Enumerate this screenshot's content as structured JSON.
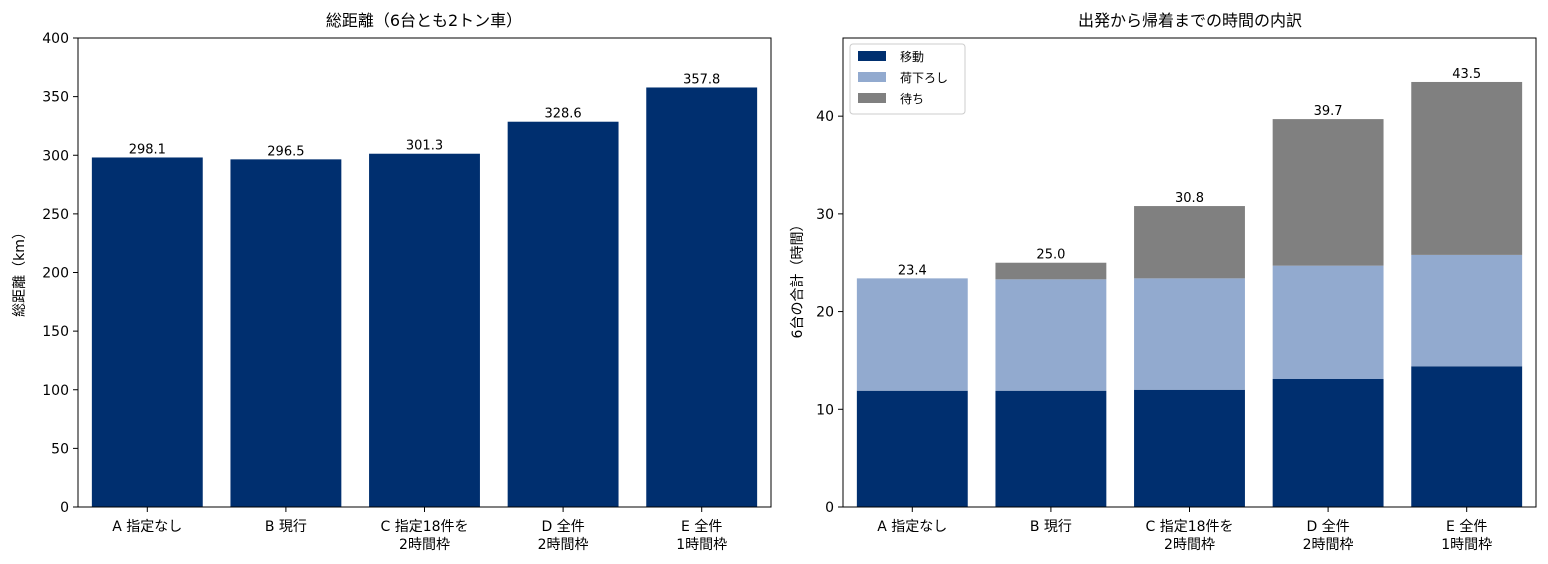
{
  "chart_data": [
    {
      "type": "bar",
      "title": "総距離（6台とも2トン車）",
      "xlabel": "",
      "ylabel": "総距離（km）",
      "ylim": [
        0,
        400
      ],
      "yticks": [
        0,
        50,
        100,
        150,
        200,
        250,
        300,
        350,
        400
      ],
      "categories": [
        [
          "A 指定なし"
        ],
        [
          "B 現行"
        ],
        [
          "C 指定18件を",
          "2時間枠"
        ],
        [
          "D 全件",
          "2時間枠"
        ],
        [
          "E 全件",
          "1時間枠"
        ]
      ],
      "values": [
        298.1,
        296.5,
        301.3,
        328.6,
        357.8
      ],
      "value_labels": [
        "298.1",
        "296.5",
        "301.3",
        "328.6",
        "357.8"
      ],
      "color": "#002f6f",
      "grid": false
    },
    {
      "type": "bar",
      "stacked": true,
      "title": "出発から帰着までの時間の内訳",
      "xlabel": "",
      "ylabel": "6台の合計（時間）",
      "ylim": [
        0,
        48
      ],
      "yticks": [
        0,
        10,
        20,
        30,
        40
      ],
      "categories": [
        [
          "A 指定なし"
        ],
        [
          "B 現行"
        ],
        [
          "C 指定18件を",
          "2時間枠"
        ],
        [
          "D 全件",
          "2時間枠"
        ],
        [
          "E 全件",
          "1時間枠"
        ]
      ],
      "series": [
        {
          "name": "移動",
          "color": "#002f6f",
          "values": [
            11.9,
            11.9,
            12.0,
            13.1,
            14.4
          ]
        },
        {
          "name": "荷下ろし",
          "color": "#92aacf",
          "values": [
            11.5,
            11.4,
            11.4,
            11.6,
            11.4
          ]
        },
        {
          "name": "待ち",
          "color": "#808080",
          "values": [
            0.0,
            1.7,
            7.4,
            15.0,
            17.7
          ]
        }
      ],
      "totals": [
        23.4,
        25.0,
        30.8,
        39.7,
        43.5
      ],
      "total_labels": [
        "23.4",
        "25.0",
        "30.8",
        "39.7",
        "43.5"
      ],
      "legend": "top-left",
      "grid": false
    }
  ]
}
